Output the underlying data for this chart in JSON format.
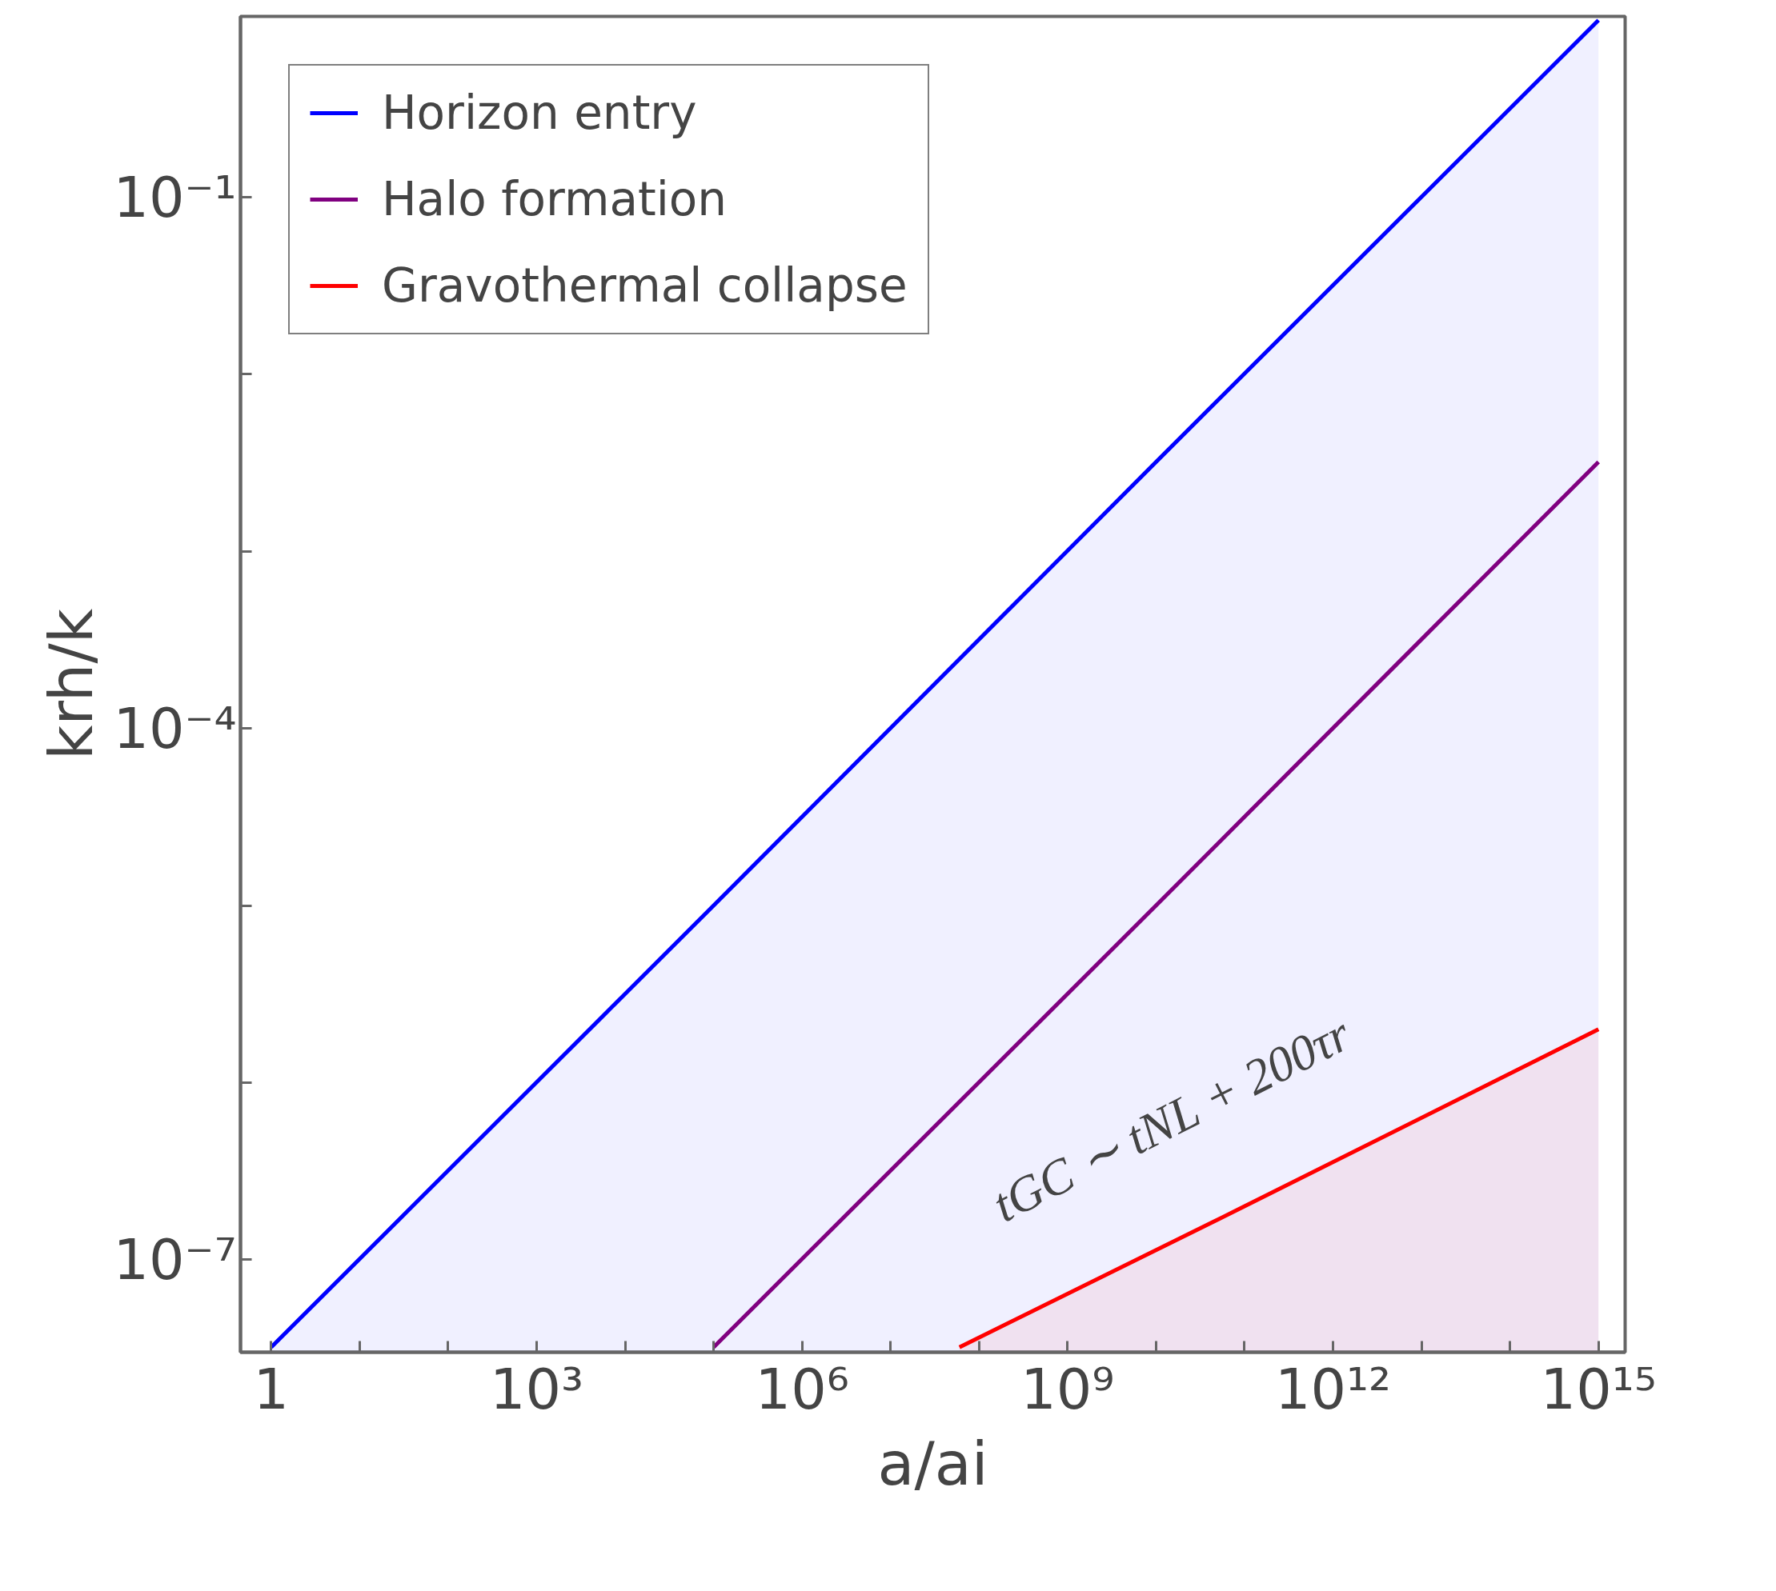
{
  "chart_data": {
    "type": "area",
    "xlabel": "a/ai",
    "ylabel": "krh/k",
    "log": "xy",
    "legend": "top left",
    "grid": false,
    "marker": "none",
    "line_style": "solid",
    "xlim": [
      0.45,
      2000000000000000.0
    ],
    "ylim": [
      3e-08,
      1.05
    ],
    "xticks": [
      {
        "value": 1,
        "label": "1"
      },
      {
        "value": 10,
        "label": null
      },
      {
        "value": 100,
        "label": null
      },
      {
        "value": 1000,
        "label": "10³"
      },
      {
        "value": 10000.0,
        "label": null
      },
      {
        "value": 100000.0,
        "label": null
      },
      {
        "value": 1000000.0,
        "label": "10⁶"
      },
      {
        "value": 10000000.0,
        "label": null
      },
      {
        "value": 100000000.0,
        "label": null
      },
      {
        "value": 1000000000.0,
        "label": "10⁹"
      },
      {
        "value": 10000000000.0,
        "label": null
      },
      {
        "value": 100000000000.0,
        "label": null
      },
      {
        "value": 1000000000000.0,
        "label": "10¹²"
      },
      {
        "value": 10000000000000.0,
        "label": null
      },
      {
        "value": 100000000000000.0,
        "label": null
      },
      {
        "value": 1000000000000000.0,
        "label": "10¹⁵"
      }
    ],
    "yticks": [
      {
        "value": 1e-07,
        "label": "10⁻⁷"
      },
      {
        "value": 1e-06,
        "label": null
      },
      {
        "value": 1e-05,
        "label": null
      },
      {
        "value": 0.0001,
        "label": "10⁻⁴"
      },
      {
        "value": 0.001,
        "label": null
      },
      {
        "value": 0.01,
        "label": null
      },
      {
        "value": 0.1,
        "label": "10⁻¹"
      }
    ],
    "series": [
      {
        "name": "Horizon entry",
        "color": "#0000ff",
        "x": [
          1,
          100000.0,
          10000000000.0,
          1000000000000000.0
        ],
        "values": [
          3.2e-08,
          1e-05,
          0.0032,
          1
        ]
      },
      {
        "name": "Halo formation",
        "color": "#800080",
        "type": "line",
        "x": [
          100000.0,
          10000000000.0,
          1000000000000000.0
        ],
        "values": [
          3.2e-08,
          1e-05,
          0.0032
        ]
      },
      {
        "name": "Gravothermal collapse",
        "color": "#ff0000",
        "x": [
          60000000.0,
          100000000000.0,
          1000000000000000.0
        ],
        "values": [
          3.2e-08,
          2e-07,
          2e-06
        ]
      }
    ],
    "annotations": [
      "tGC ∼ tNL + 200τr"
    ]
  }
}
